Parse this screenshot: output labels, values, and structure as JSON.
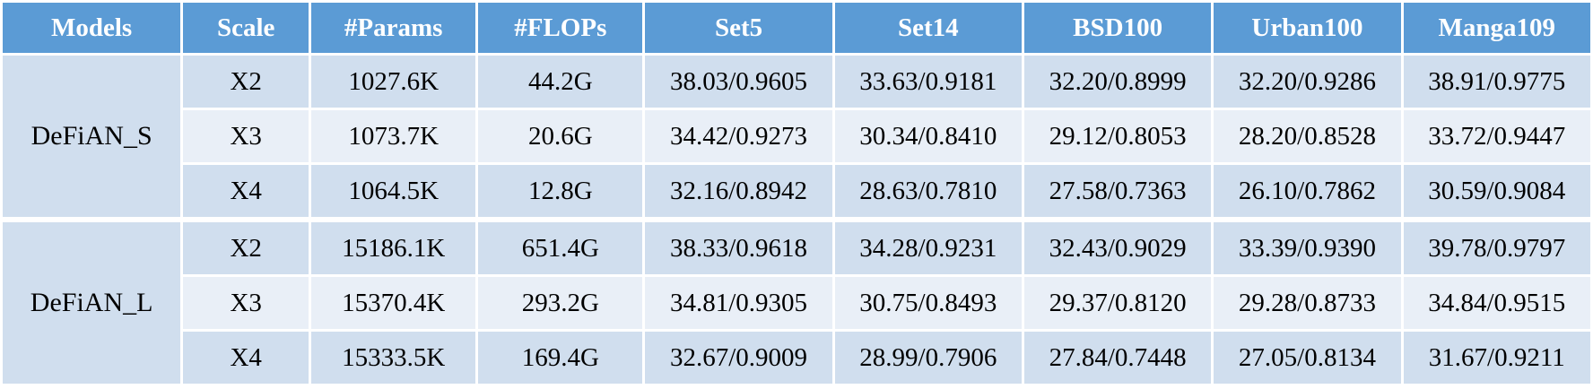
{
  "table": {
    "headers": [
      "Models",
      "Scale",
      "#Params",
      "#FLOPs",
      "Set5",
      "Set14",
      "BSD100",
      "Urban100",
      "Manga109"
    ],
    "groups": [
      {
        "model": "DeFiAN_S",
        "rows": [
          [
            "X2",
            "1027.6K",
            "44.2G",
            "38.03/0.9605",
            "33.63/0.9181",
            "32.20/0.8999",
            "32.20/0.9286",
            "38.91/0.9775"
          ],
          [
            "X3",
            "1073.7K",
            "20.6G",
            "34.42/0.9273",
            "30.34/0.8410",
            "29.12/0.8053",
            "28.20/0.8528",
            "33.72/0.9447"
          ],
          [
            "X4",
            "1064.5K",
            "12.8G",
            "32.16/0.8942",
            "28.63/0.7810",
            "27.58/0.7363",
            "26.10/0.7862",
            "30.59/0.9084"
          ]
        ]
      },
      {
        "model": "DeFiAN_L",
        "rows": [
          [
            "X2",
            "15186.1K",
            "651.4G",
            "38.33/0.9618",
            "34.28/0.9231",
            "32.43/0.9029",
            "33.39/0.9390",
            "39.78/0.9797"
          ],
          [
            "X3",
            "15370.4K",
            "293.2G",
            "34.81/0.9305",
            "30.75/0.8493",
            "29.37/0.8120",
            "29.28/0.8733",
            "34.84/0.9515"
          ],
          [
            "X4",
            "15333.5K",
            "169.4G",
            "32.67/0.9009",
            "28.99/0.7906",
            "27.84/0.7448",
            "27.05/0.8134",
            "31.67/0.9211"
          ]
        ]
      }
    ]
  },
  "colors": {
    "header_bg": "#5b9bd5",
    "header_text": "#ffffff",
    "row_dark": "#d0deee",
    "row_light": "#e9eff7"
  }
}
